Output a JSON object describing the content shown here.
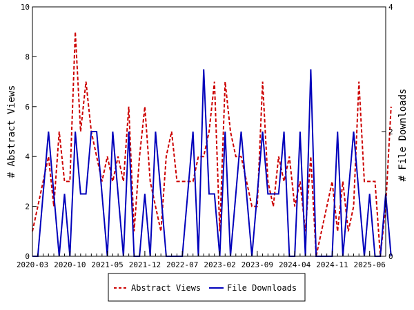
{
  "chart_data": {
    "type": "line",
    "x_start": "2020-03",
    "x_end": "2025-09",
    "x_tick_labels": [
      "2020-03",
      "2020-10",
      "2021-05",
      "2021-12",
      "2022-07",
      "2023-02",
      "2023-09",
      "2024-04",
      "2024-11",
      "2025-06"
    ],
    "ylabel_left": "# Abstract Views",
    "ylabel_right": "# File Downloads",
    "ylim_left": [
      0,
      10
    ],
    "ylim_right": [
      0,
      4
    ],
    "y_ticks_left": [
      0,
      2,
      4,
      6,
      8,
      10
    ],
    "y_ticks_right": [
      0,
      2,
      4
    ],
    "grid": false,
    "legend_position": "bottom",
    "series": [
      {
        "name": "Abstract Views",
        "axis": "left",
        "color": "#cc0000",
        "style": "dashed",
        "values": [
          1,
          2,
          3,
          4,
          2,
          5,
          3,
          3,
          9,
          5,
          7,
          5,
          4,
          3,
          4,
          3,
          4,
          3,
          6,
          1,
          4,
          6,
          3,
          2,
          1,
          4,
          5,
          3,
          3,
          3,
          3,
          4,
          4,
          5,
          7,
          1,
          7,
          5,
          4,
          4,
          3,
          2,
          2,
          7,
          3,
          2,
          4,
          3,
          4,
          2,
          3,
          1,
          4,
          0,
          1,
          2,
          3,
          1,
          3,
          1,
          2,
          7,
          3,
          3,
          3,
          0,
          2,
          6
        ]
      },
      {
        "name": "File Downloads",
        "axis": "right",
        "color": "#0000bb",
        "style": "solid",
        "values": [
          0,
          0,
          1,
          2,
          1,
          0,
          1,
          0,
          2,
          1,
          1,
          2,
          2,
          1,
          0,
          2,
          1,
          0,
          2,
          0,
          0,
          1,
          0,
          2,
          1,
          0,
          0,
          0,
          0,
          1,
          2,
          0,
          3,
          1,
          1,
          0,
          2,
          0,
          1,
          2,
          1,
          0,
          1,
          2,
          1,
          1,
          1,
          2,
          0,
          0,
          2,
          0,
          3,
          0,
          0,
          0,
          0,
          2,
          0,
          1,
          2,
          1,
          0,
          1,
          0,
          0,
          1,
          0
        ]
      }
    ]
  }
}
